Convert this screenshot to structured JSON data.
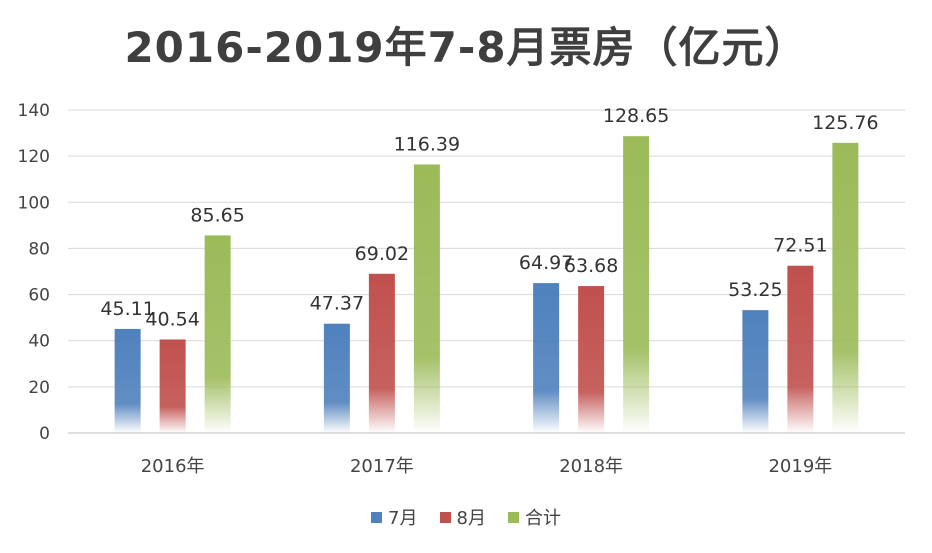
{
  "chart_data": {
    "type": "bar",
    "title": "2016-2019年7-8月票房（亿元）",
    "categories": [
      "2016年",
      "2017年",
      "2018年",
      "2019年"
    ],
    "series": [
      {
        "name": "7月",
        "values": [
          45.11,
          47.37,
          64.97,
          53.25
        ],
        "color": "#4f81bd"
      },
      {
        "name": "8月",
        "values": [
          40.54,
          69.02,
          63.68,
          72.51
        ],
        "color": "#c0504d"
      },
      {
        "name": "合计",
        "values": [
          85.65,
          116.39,
          128.65,
          125.76
        ],
        "color": "#9bbb59"
      }
    ],
    "data_labels": [
      [
        "45.11",
        "47.37",
        "64.97",
        "53.25"
      ],
      [
        "40.54",
        "69.02",
        "63.68",
        "72.51"
      ],
      [
        "85.65",
        "116.39",
        "128.65",
        "125.76"
      ]
    ],
    "ylim": [
      0,
      140
    ],
    "yticks": [
      0,
      20,
      40,
      60,
      80,
      100,
      120,
      140
    ],
    "xlabel": "",
    "ylabel": "",
    "grid": true,
    "legend": "bottom"
  }
}
